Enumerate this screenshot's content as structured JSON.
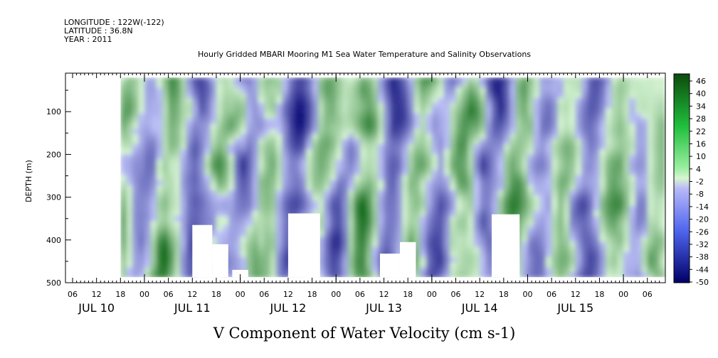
{
  "header": {
    "lines": [
      "LONGITUDE : 122W(-122)",
      "LATITUDE : 36.8N",
      "YEAR : 2011"
    ],
    "title": "Hourly Gridded MBARI Mooring M1 Sea Water Temperature and Salinity Observations"
  },
  "chart_data": {
    "type": "heatmap",
    "title": "Hourly Gridded MBARI Mooring M1 Sea Water Temperature and Salinity Observations",
    "xlabel": "V Component of Water Velocity (cm s-1)",
    "ylabel": "DEPTH (m)",
    "y_ticks": [
      "100",
      "200",
      "300",
      "400",
      "500"
    ],
    "y_range": [
      10,
      500
    ],
    "y_inverted": true,
    "x_hour_ticks": [
      "06",
      "12",
      "18",
      "00",
      "06",
      "12",
      "18",
      "00",
      "06",
      "12",
      "18",
      "00",
      "06",
      "12",
      "18",
      "00",
      "06",
      "12",
      "18",
      "00",
      "06",
      "12",
      "18",
      "00",
      "06"
    ],
    "x_day_labels": [
      "JUL 10",
      "JUL 11",
      "JUL 12",
      "JUL 13",
      "JUL 14",
      "JUL 15"
    ],
    "colorbar": {
      "labels": [
        "46",
        "40",
        "34",
        "28",
        "22",
        "16",
        "10",
        "4",
        "-2",
        "-8",
        "-14",
        "-20",
        "-26",
        "-32",
        "-38",
        "-44",
        "-50"
      ],
      "range": [
        -50,
        50
      ],
      "positive_color": "#1a7a1a",
      "negative_color": "#00006e"
    },
    "data_extent_hours": [
      12,
      138
    ],
    "blank_regions_hours_depth": [
      {
        "x": [
          0,
          12
        ],
        "depth": [
          20,
          500
        ]
      },
      {
        "x": [
          30,
          35
        ],
        "depth": [
          365,
          487
        ]
      },
      {
        "x": [
          35,
          39
        ],
        "depth": [
          410,
          487
        ]
      },
      {
        "x": [
          40,
          44
        ],
        "depth": [
          470,
          487
        ]
      },
      {
        "x": [
          54,
          62
        ],
        "depth": [
          338,
          487
        ]
      },
      {
        "x": [
          77,
          82
        ],
        "depth": [
          432,
          487
        ]
      },
      {
        "x": [
          82,
          86
        ],
        "depth": [
          405,
          487
        ]
      },
      {
        "x": [
          105,
          112
        ],
        "depth": [
          340,
          487
        ]
      }
    ],
    "grid": false
  }
}
